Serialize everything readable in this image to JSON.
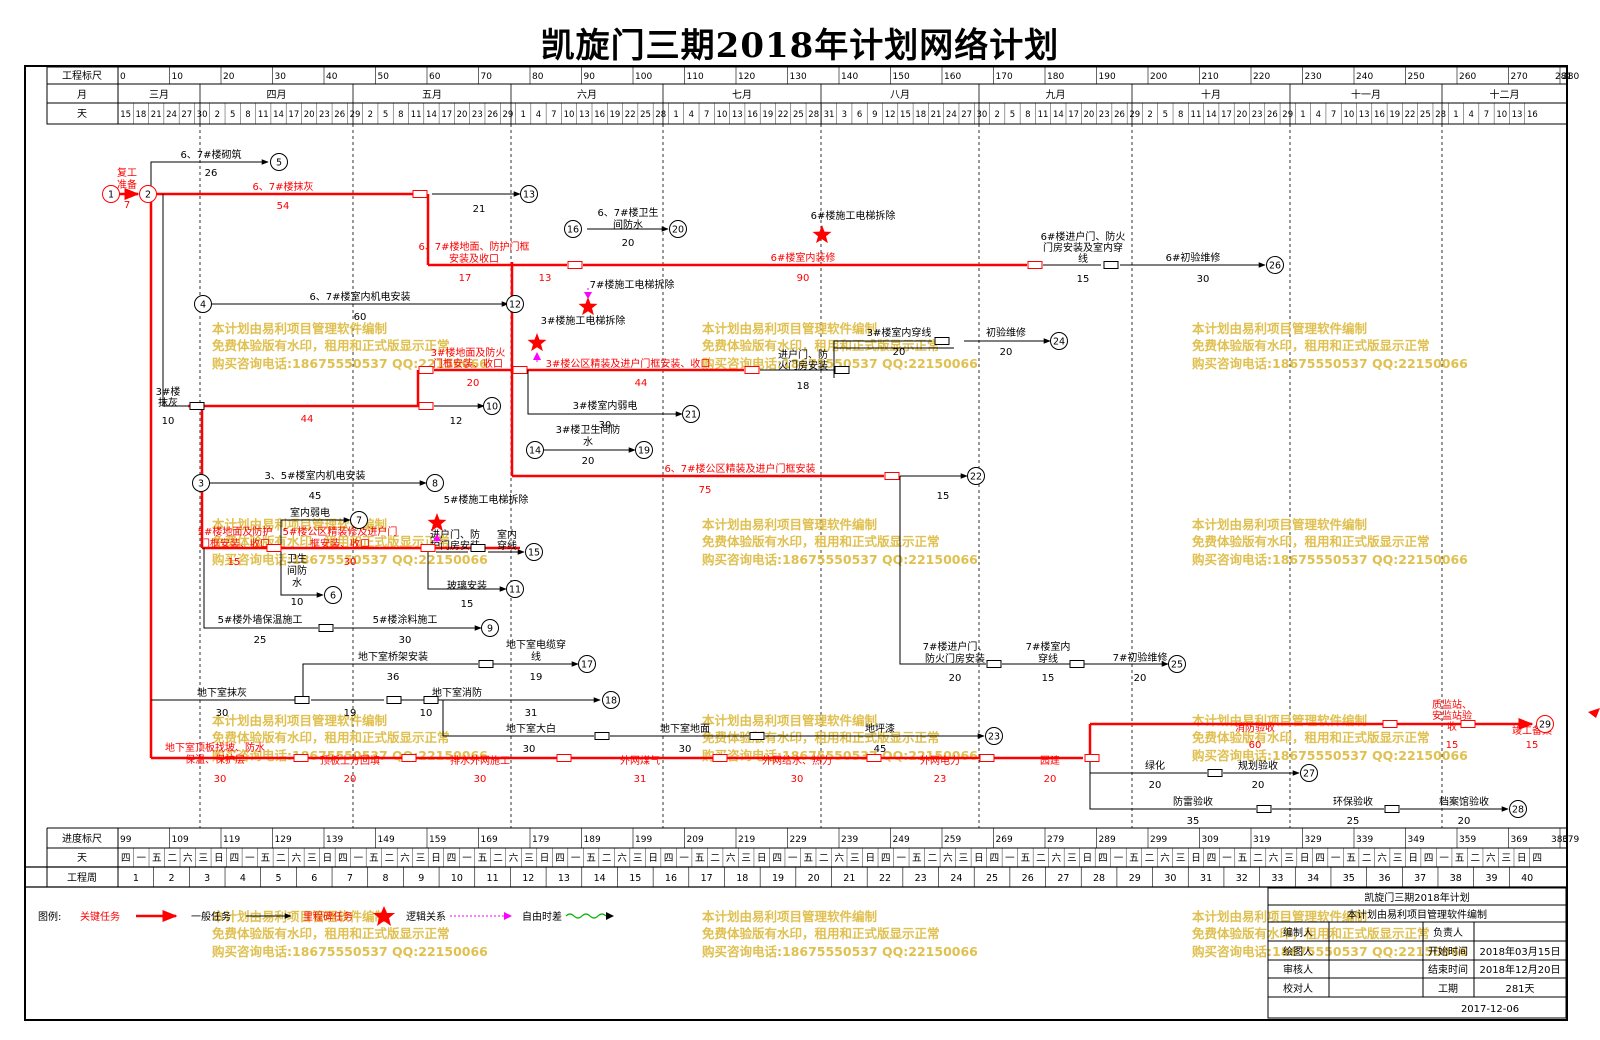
{
  "title": "凯旋门三期2018年计划网络计划",
  "scale_header": {
    "ruler_label": "工程标尺",
    "month_label": "月",
    "day_label": "天",
    "ruler_ticks": [
      "0",
      "10",
      "20",
      "30",
      "40",
      "50",
      "60",
      "70",
      "80",
      "90",
      "100",
      "110",
      "120",
      "130",
      "140",
      "150",
      "160",
      "170",
      "180",
      "190",
      "200",
      "210",
      "220",
      "230",
      "240",
      "250",
      "260",
      "270",
      "280"
    ],
    "ruler_end": "281",
    "months": [
      "三月",
      "四月",
      "五月",
      "六月",
      "七月",
      "八月",
      "九月",
      "十月",
      "十一月",
      "十二月"
    ],
    "days": [
      "15",
      "18",
      "21",
      "24",
      "27",
      "30",
      "2",
      "5",
      "8",
      "11",
      "14",
      "17",
      "20",
      "23",
      "26",
      "29",
      "2",
      "5",
      "8",
      "11",
      "14",
      "17",
      "20",
      "23",
      "26",
      "29",
      "1",
      "4",
      "7",
      "10",
      "13",
      "16",
      "19",
      "22",
      "25",
      "28",
      "1",
      "4",
      "7",
      "10",
      "13",
      "16",
      "19",
      "22",
      "25",
      "28",
      "31",
      "3",
      "6",
      "9",
      "12",
      "15",
      "18",
      "21",
      "24",
      "27",
      "30",
      "2",
      "5",
      "8",
      "11",
      "14",
      "17",
      "20",
      "23",
      "26",
      "29",
      "2",
      "5",
      "8",
      "11",
      "14",
      "17",
      "20",
      "23",
      "26",
      "29",
      "1",
      "4",
      "7",
      "10",
      "13",
      "16",
      "19",
      "22",
      "25",
      "28",
      "1",
      "4",
      "7",
      "10",
      "13",
      "16"
    ]
  },
  "bottom_scale": {
    "progress_label": "进度标尺",
    "day_label": "天",
    "week_label": "工程周",
    "progress_ticks": [
      "99",
      "109",
      "119",
      "129",
      "139",
      "149",
      "159",
      "169",
      "179",
      "189",
      "199",
      "209",
      "219",
      "229",
      "239",
      "249",
      "259",
      "269",
      "279",
      "289",
      "299",
      "309",
      "319",
      "329",
      "339",
      "349",
      "359",
      "369",
      "379"
    ],
    "progress_end": "380",
    "weekdays": [
      "四",
      "一",
      "五",
      "二",
      "六",
      "三",
      "日",
      "四",
      "一",
      "五",
      "二",
      "六",
      "三",
      "日",
      "四",
      "一",
      "五",
      "二",
      "六",
      "三",
      "日",
      "四",
      "一",
      "五",
      "二",
      "六",
      "三",
      "日",
      "四",
      "一",
      "五",
      "二",
      "六",
      "三",
      "日",
      "四",
      "一",
      "五",
      "二",
      "六",
      "三",
      "日",
      "四",
      "一",
      "五",
      "二",
      "六",
      "三",
      "日",
      "四",
      "一",
      "五",
      "二",
      "六",
      "三",
      "日",
      "四",
      "一",
      "五",
      "二",
      "六",
      "三",
      "日",
      "四",
      "一",
      "五",
      "二",
      "六",
      "三",
      "日",
      "四",
      "一",
      "五",
      "二",
      "六",
      "三",
      "日",
      "四",
      "一",
      "五",
      "二",
      "六",
      "三",
      "日",
      "四",
      "一",
      "五",
      "二",
      "六",
      "三",
      "日",
      "四"
    ],
    "weeks": [
      "1",
      "2",
      "3",
      "4",
      "5",
      "6",
      "7",
      "8",
      "9",
      "10",
      "11",
      "12",
      "13",
      "14",
      "15",
      "16",
      "17",
      "18",
      "19",
      "20",
      "21",
      "22",
      "23",
      "24",
      "25",
      "26",
      "27",
      "28",
      "29",
      "30",
      "31",
      "32",
      "33",
      "34",
      "35",
      "36",
      "37",
      "38",
      "39",
      "40"
    ]
  },
  "legend": {
    "label": "图例:",
    "critical": "关键任务",
    "normal": "一般任务",
    "milestone": "里程碑任务",
    "logic": "逻辑关系",
    "float": "自由时差"
  },
  "title_block": {
    "project": "凯旋门三期2018年计划",
    "software": "本计划由易利项目管理软件编制",
    "compiler_label": "编制人",
    "owner_label": "负责人",
    "drawer_label": "绘图人",
    "start_label": "开始时间",
    "start_value": "2018年03月15日",
    "reviewer_label": "审核人",
    "end_label": "结束时间",
    "end_value": "2018年12月20日",
    "checker_label": "校对人",
    "duration_label": "工期",
    "duration_value": "281天",
    "date": "2017-12-06"
  },
  "watermark": {
    "line1": "本计划由易利项目管理软件编制",
    "line2": "免费体验版有水印，租用和正式版显示正常",
    "line3": "购买咨询电话:18675550537 QQ:22150066"
  },
  "colors": {
    "critical": "#ff0000",
    "normal": "#000000",
    "watermark": "#e0c050",
    "logic": "#ff00ff",
    "float": "#00b000"
  },
  "chart_data": {
    "type": "network",
    "tasks": [
      {
        "name": "复工准备",
        "duration": "7",
        "critical": true
      },
      {
        "name": "6、7#楼砌筑",
        "duration": "26",
        "critical": false
      },
      {
        "name": "6、7#楼抹灰",
        "duration": "54",
        "critical": true
      },
      {
        "name": "",
        "duration": "21",
        "critical": false
      },
      {
        "name": "6、7#楼卫生间防水",
        "duration": "20",
        "critical": false
      },
      {
        "name": "6#楼施工电梯拆除",
        "duration": "",
        "critical": false
      },
      {
        "name": "6、7#楼地面、防护门框安装及收口",
        "duration": "17",
        "critical": true
      },
      {
        "name": "",
        "duration": "13",
        "critical": true
      },
      {
        "name": "6#楼室内装修",
        "duration": "90",
        "critical": true
      },
      {
        "name": "6#楼进户门、防火门房安装及室内穿线",
        "duration": "15",
        "critical": false
      },
      {
        "name": "6#初验维修",
        "duration": "30",
        "critical": false
      },
      {
        "name": "7#楼施工电梯拆除",
        "duration": "",
        "critical": false
      },
      {
        "name": "6、7#楼室内机电安装",
        "duration": "60",
        "critical": false
      },
      {
        "name": "3#楼施工电梯拆除",
        "duration": "",
        "critical": false
      },
      {
        "name": "3#楼室内穿线",
        "duration": "20",
        "critical": false
      },
      {
        "name": "初验维修",
        "duration": "20",
        "critical": false
      },
      {
        "name": "3#楼地面及防火门框安装、收口",
        "duration": "20",
        "critical": true
      },
      {
        "name": "3#楼公区精装及进户门框安装、收口",
        "duration": "44",
        "critical": true
      },
      {
        "name": "进户门、防火门房安装",
        "duration": "18",
        "critical": false
      },
      {
        "name": "3#楼抹灰",
        "duration": "10",
        "critical": false
      },
      {
        "name": "",
        "duration": "44",
        "critical": true
      },
      {
        "name": "",
        "duration": "12",
        "critical": false
      },
      {
        "name": "3#楼室内弱电",
        "duration": "30",
        "critical": false
      },
      {
        "name": "3#楼卫生间防水",
        "duration": "20",
        "critical": false
      },
      {
        "name": "6、7#楼公区精装及进户门框安装",
        "duration": "75",
        "critical": true
      },
      {
        "name": "",
        "duration": "15",
        "critical": false
      },
      {
        "name": "3、5#楼室内机电安装",
        "duration": "45",
        "critical": false
      },
      {
        "name": "5#楼施工电梯拆除",
        "duration": "",
        "critical": false
      },
      {
        "name": "室内弱电",
        "duration": "",
        "critical": false
      },
      {
        "name": "5#楼地面及防护门框安装、收口",
        "duration": "15",
        "critical": true
      },
      {
        "name": "5#楼公区精装修及进户门框安装、收口",
        "duration": "30",
        "critical": true
      },
      {
        "name": "卫生间防水",
        "duration": "10",
        "critical": false
      },
      {
        "name": "进户门、防护门房安装",
        "duration": "",
        "critical": false
      },
      {
        "name": "室内穿线",
        "duration": "",
        "critical": false
      },
      {
        "name": "玻璃安装",
        "duration": "15",
        "critical": false
      },
      {
        "name": "5#楼外墙保温施工",
        "duration": "25",
        "critical": false
      },
      {
        "name": "5#楼涂料施工",
        "duration": "30",
        "critical": false
      },
      {
        "name": "7#楼进户门、防火门房安装",
        "duration": "20",
        "critical": false
      },
      {
        "name": "7#楼室内穿线",
        "duration": "15",
        "critical": false
      },
      {
        "name": "7#初验维修",
        "duration": "20",
        "critical": false
      },
      {
        "name": "地下室桥架安装",
        "duration": "36",
        "critical": false
      },
      {
        "name": "地下室电缆穿线",
        "duration": "19",
        "critical": false
      },
      {
        "name": "地下室抹灰",
        "duration": "30",
        "critical": false
      },
      {
        "name": "",
        "duration": "19",
        "critical": false
      },
      {
        "name": "",
        "duration": "10",
        "critical": false
      },
      {
        "name": "地下室消防",
        "duration": "31",
        "critical": false
      },
      {
        "name": "地下室大白",
        "duration": "30",
        "critical": false
      },
      {
        "name": "地下室地面",
        "duration": "30",
        "critical": false
      },
      {
        "name": "地坪漆",
        "duration": "45",
        "critical": false
      },
      {
        "name": "地下室顶板找坡、防水保温、保护层",
        "duration": "30",
        "critical": true
      },
      {
        "name": "顶板土方回填",
        "duration": "20",
        "critical": true
      },
      {
        "name": "排水外网施工",
        "duration": "30",
        "critical": true
      },
      {
        "name": "外网煤气",
        "duration": "31",
        "critical": true
      },
      {
        "name": "外网给水、热力",
        "duration": "30",
        "critical": true
      },
      {
        "name": "外网电力",
        "duration": "23",
        "critical": true
      },
      {
        "name": "园建",
        "duration": "20",
        "critical": true
      },
      {
        "name": "消防验收",
        "duration": "60",
        "critical": true
      },
      {
        "name": "质监站、安监站验收",
        "duration": "15",
        "critical": true
      },
      {
        "name": "竣工备案",
        "duration": "15",
        "critical": true
      },
      {
        "name": "绿化",
        "duration": "20",
        "critical": false
      },
      {
        "name": "规划验收",
        "duration": "20",
        "critical": false
      },
      {
        "name": "防雷验收",
        "duration": "35",
        "critical": false
      },
      {
        "name": "环保验收",
        "duration": "25",
        "critical": false
      },
      {
        "name": "档案馆验收",
        "duration": "20",
        "critical": false
      }
    ]
  }
}
